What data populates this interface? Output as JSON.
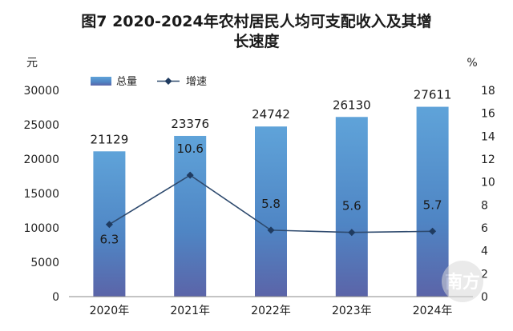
{
  "chart_data": {
    "type": "bar",
    "title_lines": [
      "图7   2020-2024年农村居民人均可支配收入及其增",
      "长速度"
    ],
    "left_unit": "元",
    "right_unit": "%",
    "categories": [
      "2020年",
      "2021年",
      "2022年",
      "2023年",
      "2024年"
    ],
    "series": [
      {
        "name": "总量",
        "type": "bar",
        "axis": "left",
        "values": [
          21129,
          23376,
          24742,
          26130,
          27611
        ],
        "color": "#5b9bd5"
      },
      {
        "name": "增速",
        "type": "line",
        "axis": "right",
        "values": [
          6.3,
          10.6,
          5.8,
          5.6,
          5.7
        ],
        "color": "#2e4a6e"
      }
    ],
    "left_axis": {
      "min": 0,
      "max": 30000,
      "step": 5000,
      "ticks": [
        "0",
        "5000",
        "10000",
        "15000",
        "20000",
        "25000",
        "30000"
      ]
    },
    "right_axis": {
      "min": 0,
      "max": 18,
      "step": 2,
      "ticks": [
        "0",
        "2",
        "4",
        "6",
        "8",
        "10",
        "12",
        "14",
        "16",
        "18"
      ]
    },
    "bar_labels": [
      "21129",
      "23376",
      "24742",
      "26130",
      "27611"
    ],
    "rate_labels": [
      "6.3",
      "10.6",
      "5.8",
      "5.6",
      "5.7"
    ],
    "legend": [
      {
        "label": "总量",
        "kind": "bar"
      },
      {
        "label": "增速",
        "kind": "line"
      }
    ],
    "legend_position": "top-left",
    "grid": false,
    "watermark_text": "南方"
  }
}
